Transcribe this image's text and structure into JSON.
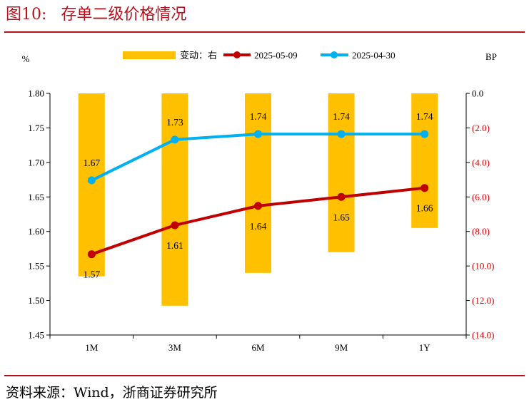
{
  "title": {
    "figure_label": "图10:",
    "text": "存单二级价格情况"
  },
  "source": "资料来源：Wind，浙商证券研究所",
  "chart_data": {
    "type": "bar+line",
    "categories": [
      "1M",
      "3M",
      "6M",
      "9M",
      "1Y"
    ],
    "left_axis": {
      "unit_label": "%",
      "ylim": [
        1.45,
        1.8
      ],
      "ticks": [
        "1.45",
        "1.50",
        "1.55",
        "1.60",
        "1.65",
        "1.70",
        "1.75",
        "1.80"
      ]
    },
    "right_axis": {
      "unit_label": "BP",
      "ylim": [
        -14,
        0
      ],
      "ticks": [
        "0.0",
        "(2.0)",
        "(4.0)",
        "(6.0)",
        "(8.0)",
        "(10.0)",
        "(12.0)",
        "(14.0)"
      ]
    },
    "bars": {
      "name": "变动：右",
      "axis": "right",
      "values": [
        -10.6,
        -12.3,
        -10.4,
        -9.2,
        -7.8
      ],
      "color": "#ffc000"
    },
    "series": [
      {
        "name": "2025-05-09",
        "axis": "left",
        "values": [
          1.567,
          1.609,
          1.637,
          1.65,
          1.663
        ],
        "labels": [
          "1.57",
          "1.61",
          "1.64",
          "1.65",
          "1.66"
        ],
        "color": "#c00000"
      },
      {
        "name": "2025-04-30",
        "axis": "left",
        "values": [
          1.674,
          1.733,
          1.741,
          1.741,
          1.741
        ],
        "labels": [
          "1.67",
          "1.73",
          "1.74",
          "1.74",
          "1.74"
        ],
        "color": "#00b0f0"
      }
    ],
    "legend_position": "top"
  }
}
